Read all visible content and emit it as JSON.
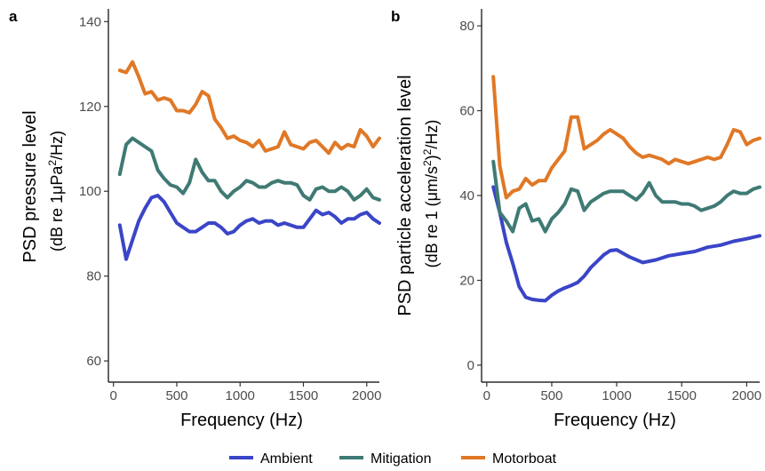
{
  "colors": {
    "Ambient": "#3a45c7",
    "Mitigation": "#3f7a74",
    "Motorboat": "#e07826"
  },
  "legend": {
    "position": "bottom",
    "entries": [
      "Ambient",
      "Mitigation",
      "Motorboat"
    ]
  },
  "chart_data": [
    {
      "panel": "a",
      "type": "line",
      "xlabel": "Frequency (Hz)",
      "ylabel_line1": "PSD pressure level",
      "ylabel_line2_prefix": "(dB re 1",
      "ylabel_line2_unit": "μPa",
      "ylabel_line2_sup": "2",
      "ylabel_line2_suffix": "/Hz)",
      "xlim": [
        -40,
        2100
      ],
      "ylim": [
        55,
        143
      ],
      "xticks": [
        0,
        500,
        1000,
        1500,
        2000
      ],
      "yticks": [
        60,
        80,
        100,
        120,
        140
      ],
      "grid": false,
      "series": [
        {
          "name": "Ambient",
          "x": [
            50,
            100,
            150,
            200,
            250,
            300,
            350,
            400,
            450,
            500,
            550,
            600,
            650,
            700,
            750,
            800,
            850,
            900,
            950,
            1000,
            1050,
            1100,
            1150,
            1200,
            1250,
            1300,
            1350,
            1400,
            1450,
            1500,
            1550,
            1600,
            1650,
            1700,
            1750,
            1800,
            1850,
            1900,
            1950,
            2000,
            2050,
            2100
          ],
          "y": [
            92,
            84,
            88.5,
            93,
            96,
            98.5,
            99,
            97.5,
            95,
            92.5,
            91.5,
            90.5,
            90.5,
            91.5,
            92.5,
            92.5,
            91.5,
            90,
            90.5,
            92,
            93,
            93.5,
            92.5,
            93,
            93,
            92,
            92.5,
            92,
            91.5,
            91.5,
            93.5,
            95.5,
            94.5,
            95,
            94,
            92.5,
            93.5,
            93.5,
            94.5,
            95,
            93.5,
            92.5
          ]
        },
        {
          "name": "Mitigation",
          "x": [
            50,
            100,
            150,
            200,
            250,
            300,
            350,
            400,
            450,
            500,
            550,
            600,
            650,
            700,
            750,
            800,
            850,
            900,
            950,
            1000,
            1050,
            1100,
            1150,
            1200,
            1250,
            1300,
            1350,
            1400,
            1450,
            1500,
            1550,
            1600,
            1650,
            1700,
            1750,
            1800,
            1850,
            1900,
            1950,
            2000,
            2050,
            2100
          ],
          "y": [
            104,
            111,
            112.5,
            111.5,
            110.5,
            109.5,
            105,
            103,
            101.5,
            101,
            99.5,
            102,
            107.5,
            104.5,
            102.5,
            102.5,
            100,
            98.5,
            100,
            101,
            102.5,
            102,
            101,
            101,
            102,
            102.5,
            102,
            102,
            101.5,
            99,
            98,
            100.5,
            101,
            100,
            100,
            101,
            100,
            98,
            99,
            100.5,
            98.5,
            98
          ]
        },
        {
          "name": "Motorboat",
          "x": [
            50,
            100,
            150,
            200,
            250,
            300,
            350,
            400,
            450,
            500,
            550,
            600,
            650,
            700,
            750,
            800,
            850,
            900,
            950,
            1000,
            1050,
            1100,
            1150,
            1200,
            1250,
            1300,
            1350,
            1400,
            1450,
            1500,
            1550,
            1600,
            1650,
            1700,
            1750,
            1800,
            1850,
            1900,
            1950,
            2000,
            2050,
            2100
          ],
          "y": [
            128.5,
            128,
            130.5,
            127,
            123,
            123.5,
            121.5,
            122,
            121.5,
            119,
            119,
            118.5,
            120.5,
            123.5,
            122.5,
            117,
            115,
            112.5,
            113,
            112,
            111.5,
            110.5,
            112,
            109.5,
            110,
            110.5,
            114,
            111,
            110.5,
            110,
            111.5,
            112,
            110.5,
            109,
            111.5,
            110,
            111,
            110.5,
            114.5,
            113,
            110.5,
            112.5
          ]
        }
      ]
    },
    {
      "panel": "b",
      "type": "line",
      "xlabel": "Frequency (Hz)",
      "ylabel_line1": "PSD particle acceleration level",
      "ylabel_line2_prefix": "(dB re 1 (μm/s",
      "ylabel_line2_sup": "2",
      "ylabel_line2_mid": ")",
      "ylabel_line2_sup2": "2",
      "ylabel_line2_suffix": "/Hz)",
      "xlim": [
        -40,
        2100
      ],
      "ylim": [
        -4,
        84
      ],
      "xticks": [
        0,
        500,
        1000,
        1500,
        2000
      ],
      "yticks": [
        0,
        20,
        40,
        60,
        80
      ],
      "grid": false,
      "series": [
        {
          "name": "Ambient",
          "x": [
            50,
            100,
            150,
            200,
            250,
            300,
            350,
            400,
            450,
            500,
            550,
            600,
            650,
            700,
            750,
            800,
            850,
            900,
            950,
            1000,
            1100,
            1200,
            1300,
            1400,
            1500,
            1600,
            1700,
            1800,
            1900,
            2000,
            2100
          ],
          "y": [
            42,
            36,
            29,
            24,
            18.5,
            16,
            15.5,
            15.3,
            15.2,
            16.5,
            17.5,
            18.2,
            18.8,
            19.5,
            21,
            23,
            24.5,
            26,
            27,
            27.2,
            25.5,
            24.2,
            24.8,
            25.8,
            26.3,
            26.8,
            27.8,
            28.3,
            29.2,
            29.8,
            30.5
          ]
        },
        {
          "name": "Mitigation",
          "x": [
            50,
            100,
            150,
            200,
            250,
            300,
            350,
            400,
            450,
            500,
            550,
            600,
            650,
            700,
            750,
            800,
            850,
            900,
            950,
            1000,
            1050,
            1100,
            1150,
            1200,
            1250,
            1300,
            1350,
            1400,
            1450,
            1500,
            1550,
            1600,
            1650,
            1700,
            1750,
            1800,
            1850,
            1900,
            1950,
            2000,
            2050,
            2100
          ],
          "y": [
            48,
            36,
            34,
            31.5,
            37,
            38,
            34,
            34.5,
            31.5,
            34.5,
            36,
            38,
            41.5,
            41,
            36.5,
            38.5,
            39.5,
            40.5,
            41,
            41,
            41,
            40,
            39,
            40.5,
            43,
            40,
            38.5,
            38.5,
            38.5,
            38,
            38,
            37.5,
            36.5,
            37,
            37.5,
            38.5,
            40,
            41,
            40.5,
            40.5,
            41.5,
            42
          ]
        },
        {
          "name": "Motorboat",
          "x": [
            50,
            100,
            150,
            200,
            250,
            300,
            350,
            400,
            450,
            500,
            550,
            600,
            650,
            700,
            750,
            800,
            850,
            900,
            950,
            1000,
            1050,
            1100,
            1150,
            1200,
            1250,
            1300,
            1350,
            1400,
            1450,
            1500,
            1550,
            1600,
            1650,
            1700,
            1750,
            1800,
            1850,
            1900,
            1950,
            2000,
            2050,
            2100
          ],
          "y": [
            68,
            47,
            39.5,
            41,
            41.5,
            44,
            42.5,
            43.5,
            43.5,
            46.5,
            48.5,
            50.5,
            58.5,
            58.5,
            51,
            52,
            53,
            54.5,
            55.5,
            54.5,
            53.5,
            51.5,
            50,
            49,
            49.5,
            49,
            48.5,
            47.5,
            48.5,
            48,
            47.5,
            48,
            48.5,
            49,
            48.5,
            49,
            52,
            55.5,
            55,
            52,
            53,
            53.5
          ]
        }
      ]
    }
  ]
}
